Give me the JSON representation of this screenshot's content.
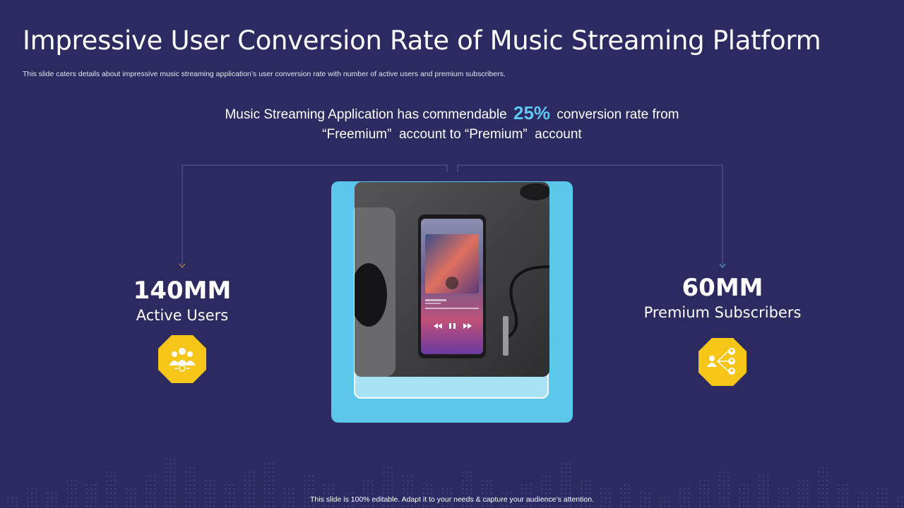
{
  "slide": {
    "title": "Impressive User Conversion Rate of Music Streaming Platform",
    "subtitle": "This slide caters details about impressive music streaming application’s user conversion rate with number of active users and premium subscribers.",
    "headline": {
      "before": "Music Streaming Application has commendable",
      "percent": "25%",
      "after_line1": "conversion rate from",
      "line2": "“Freemium”  account to “Premium”  account"
    },
    "left_stat": {
      "value": "140MM",
      "label": "Active Users",
      "icon": "users-group-icon"
    },
    "right_stat": {
      "value": "60MM",
      "label": "Premium Subscribers",
      "icon": "subscribers-network-icon"
    },
    "photo": {
      "description": "phone-music-player-photo"
    },
    "footer": "This slide is 100% editable. Adapt it to your needs & capture your audience’s attention."
  },
  "colors": {
    "background": "#2c2a61",
    "accent_percent": "#5ec8f2",
    "frame": "#5cc7eb",
    "icon_fill": "#f5c518"
  }
}
